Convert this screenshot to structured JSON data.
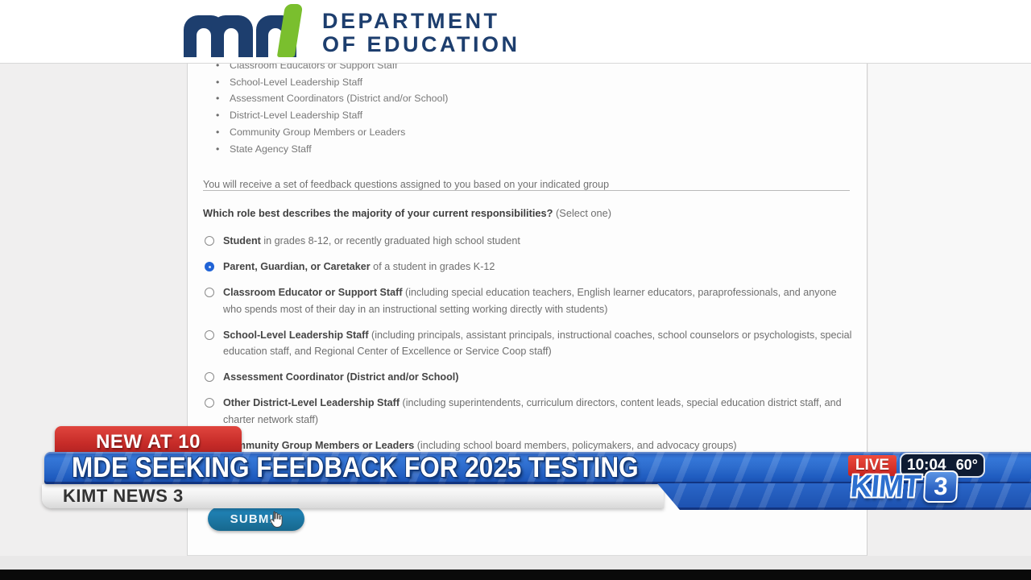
{
  "brand": {
    "dept_line1": "DEPARTMENT",
    "dept_line2": "OF EDUCATION",
    "navy": "#1d3e6e",
    "green": "#7abf2e"
  },
  "survey": {
    "bullets": [
      "Classroom Educators or Support Staff",
      "School-Level Leadership Staff",
      "Assessment Coordinators (District and/or School)",
      "District-Level Leadership Staff",
      "Community Group Members or Leaders",
      "State Agency Staff"
    ],
    "intro": "You will receive a set of feedback questions assigned to you based on your indicated group",
    "question": "Which role best describes the majority of your current responsibilities?",
    "question_hint": "(Select one)",
    "options": [
      {
        "label": "Student",
        "detail": "in grades 8-12, or recently graduated high school student",
        "selected": false
      },
      {
        "label": "Parent, Guardian, or Caretaker",
        "detail": "of a student in grades K-12",
        "selected": true
      },
      {
        "label": "Classroom Educator or Support Staff",
        "detail": "(including special education teachers, English learner educators, paraprofessionals, and anyone who spends most of their day in an instructional setting working directly with students)",
        "selected": false
      },
      {
        "label": "School-Level Leadership Staff",
        "detail": "(including principals, assistant principals, instructional coaches, school counselors or psychologists, special education staff, and Regional Center of Excellence or Service Coop staff)",
        "selected": false
      },
      {
        "label": "Assessment Coordinator (District and/or School)",
        "detail": "",
        "selected": false
      },
      {
        "label": "Other District-Level Leadership Staff",
        "detail": "(including superintendents, curriculum directors, content leads, special education district staff, and charter network staff)",
        "selected": false
      },
      {
        "label": "Community Group Members or Leaders",
        "detail": "(including school board members, policymakers, and advocacy groups)",
        "selected": false
      }
    ],
    "submit_label": "SUBMIT"
  },
  "overlay": {
    "kicker": "NEW AT 10",
    "headline": "MDE SEEKING FEEDBACK FOR 2025 TESTING",
    "station": "KIMT NEWS 3",
    "live_label": "LIVE",
    "time": "10:04",
    "temp": "60°",
    "logo_text": "KIMT",
    "logo_number": "3",
    "banner_blue": "#2365c6",
    "badge_red": "#c62b28"
  }
}
